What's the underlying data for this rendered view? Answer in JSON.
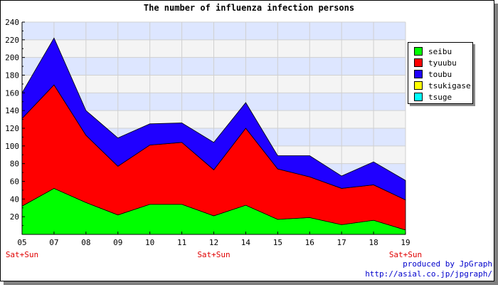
{
  "chart_data": {
    "type": "area",
    "stacked": true,
    "title": "The number of influenza infection persons",
    "categories": [
      "05",
      "07",
      "08",
      "09",
      "10",
      "11",
      "12",
      "14",
      "15",
      "16",
      "17",
      "18",
      "19"
    ],
    "weekend_label": "Sat+Sun",
    "weekend_categories": [
      "05",
      "12",
      "19"
    ],
    "ylim": [
      0,
      240
    ],
    "yticks": [
      20,
      40,
      60,
      80,
      100,
      120,
      140,
      160,
      180,
      200,
      220,
      240
    ],
    "grid": true,
    "legend_position": "right",
    "series": [
      {
        "name": "seibu",
        "color": "#00ff00",
        "values": [
          32,
          52,
          36,
          22,
          34,
          34,
          21,
          33,
          17,
          19,
          11,
          16,
          5
        ]
      },
      {
        "name": "tyuubu",
        "color": "#ff0000",
        "values": [
          99,
          117,
          76,
          55,
          67,
          70,
          52,
          87,
          57,
          46,
          41,
          40,
          34
        ]
      },
      {
        "name": "toubu",
        "color": "#2000ff",
        "values": [
          29,
          53,
          28,
          32,
          24,
          22,
          31,
          29,
          15,
          24,
          14,
          26,
          22
        ]
      },
      {
        "name": "tsukigase",
        "color": "#ffff00",
        "values": [
          0,
          0,
          0,
          0,
          0,
          0,
          0,
          0,
          0,
          0,
          0,
          0,
          0
        ]
      },
      {
        "name": "tsuge",
        "color": "#00ffff",
        "values": [
          0,
          0,
          0,
          0,
          0,
          0,
          0,
          0,
          0,
          0,
          0,
          0,
          0
        ]
      }
    ]
  },
  "footer": {
    "line1": "produced by JpGraph",
    "line2": "http://asial.co.jp/jpgraph/"
  }
}
